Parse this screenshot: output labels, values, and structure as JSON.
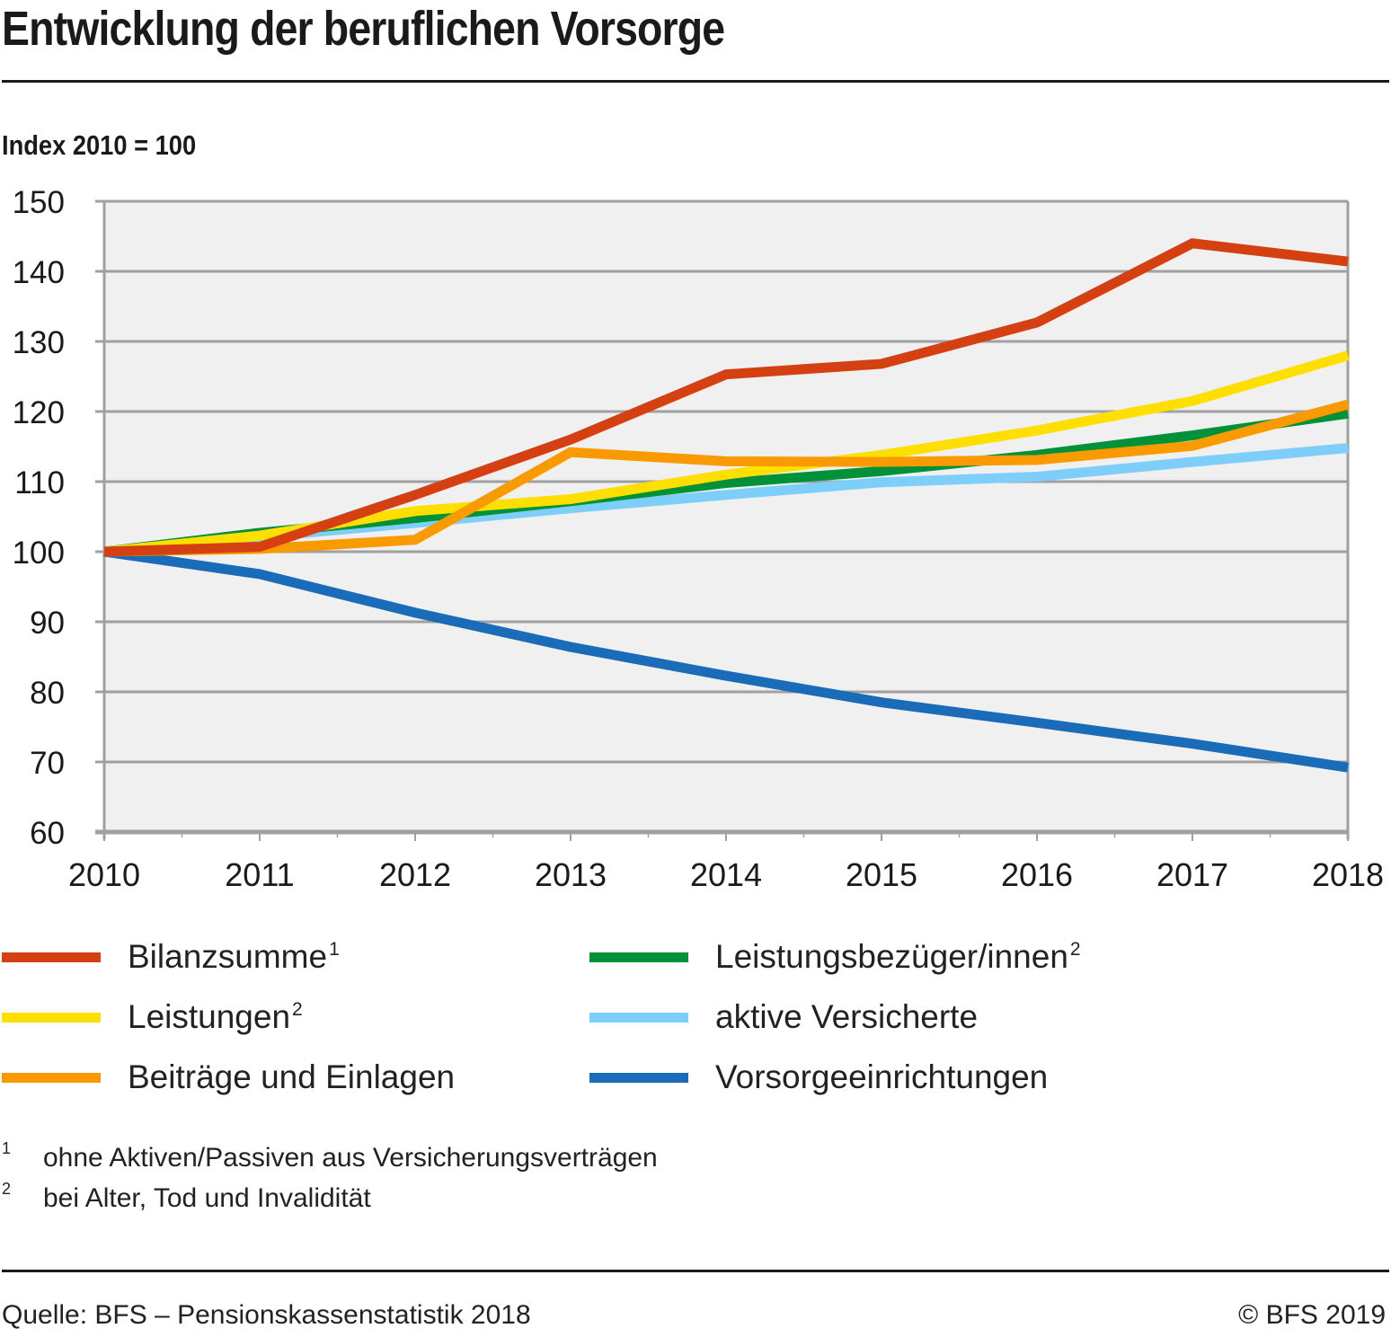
{
  "header": {
    "title": "Entwicklung der beruflichen Vorsorge",
    "unit_label": "Index 2010 = 100"
  },
  "chart_data": {
    "type": "line",
    "title": "Entwicklung der beruflichen Vorsorge",
    "subtitle": "Index 2010 = 100",
    "xlabel": "",
    "ylabel": "Index 2010 = 100",
    "x": [
      "2010",
      "2011",
      "2012",
      "2013",
      "2014",
      "2015",
      "2016",
      "2017",
      "2018"
    ],
    "ylim": [
      60,
      150
    ],
    "yticks": [
      60,
      70,
      80,
      90,
      100,
      110,
      120,
      130,
      140,
      150
    ],
    "grid": true,
    "legend_position": "bottom",
    "series": [
      {
        "name": "Bilanzsumme",
        "footnote": "1",
        "color": "#d44012",
        "values": [
          100,
          100.7,
          108.1,
          116.0,
          125.3,
          126.8,
          132.7,
          144.0,
          141.4
        ]
      },
      {
        "name": "Leistungen",
        "footnote": "2",
        "color": "#ffdf00",
        "values": [
          100,
          102.3,
          105.8,
          107.5,
          111.0,
          113.8,
          117.3,
          121.5,
          128.0
        ]
      },
      {
        "name": "Beiträge und Einlagen",
        "footnote": "",
        "color": "#f99b00",
        "values": [
          100,
          100.4,
          101.7,
          114.2,
          112.9,
          112.8,
          113.1,
          115.1,
          121.0
        ]
      },
      {
        "name": "Leistungsbezüger/innen",
        "footnote": "2",
        "color": "#009139",
        "values": [
          100,
          102.7,
          104.8,
          107.2,
          109.8,
          111.5,
          113.8,
          116.6,
          119.7
        ]
      },
      {
        "name": "aktive Versicherte",
        "footnote": "",
        "color": "#7dcff9",
        "values": [
          100,
          102.1,
          104.1,
          106.2,
          108.1,
          109.9,
          110.7,
          112.8,
          114.8
        ]
      },
      {
        "name": "Vorsorgeeinrichtungen",
        "footnote": "",
        "color": "#1a6bb8",
        "values": [
          100,
          96.8,
          91.3,
          86.4,
          82.3,
          78.5,
          75.6,
          72.6,
          69.2
        ]
      }
    ]
  },
  "legend": {
    "items": [
      {
        "label": "Bilanzsumme",
        "sup": "1"
      },
      {
        "label": "Leistungsbezüger/innen",
        "sup": "2"
      },
      {
        "label": "Leistungen",
        "sup": "2"
      },
      {
        "label": "aktive Versicherte",
        "sup": ""
      },
      {
        "label": "Beiträge und Einlagen",
        "sup": ""
      },
      {
        "label": "Vorsorgeeinrichtungen",
        "sup": ""
      }
    ]
  },
  "footnotes": [
    {
      "mark": "1",
      "text": "ohne Aktiven/Passiven aus Versicherungsverträgen"
    },
    {
      "mark": "2",
      "text": "bei Alter, Tod und Invalidität"
    }
  ],
  "footer": {
    "source": "Quelle: BFS – Pensionskassenstatistik 2018",
    "copyright": "© BFS 2019"
  },
  "colors": {
    "plot_background": "#f0f0f0",
    "gridline": "#a0a0a0"
  }
}
